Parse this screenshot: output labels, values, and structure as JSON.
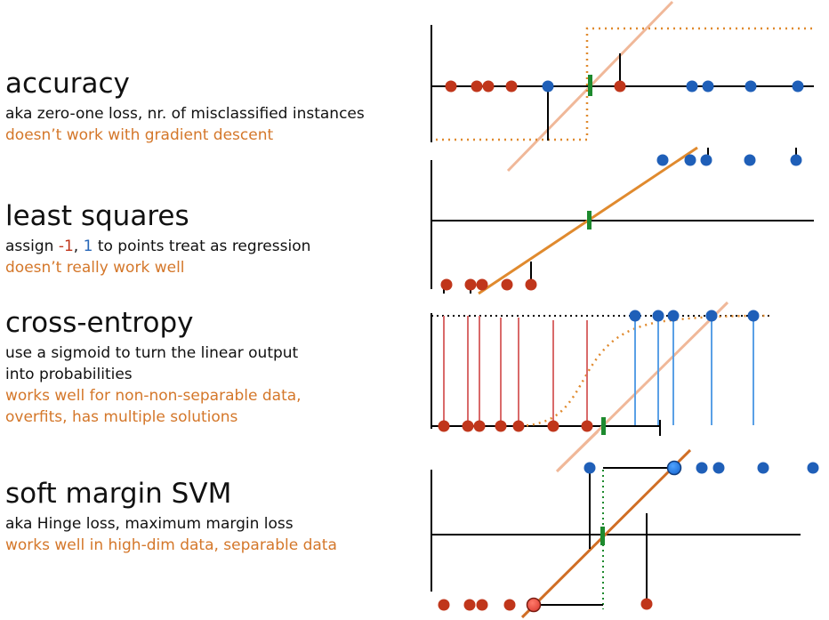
{
  "sections": [
    {
      "title": "accuracy",
      "desc": "aka zero-one loss, nr. of misclassified instances",
      "note": "doesn’t work with gradient descent"
    },
    {
      "title": "least squares",
      "desc_prefix": "assign ",
      "desc_neg": "-1",
      "desc_sep": ", ",
      "desc_pos": "1",
      "desc_suffix": " to points treat as regression",
      "note": "doesn’t really work  well"
    },
    {
      "title": "cross-entropy",
      "desc1": "use a sigmoid to turn the linear output",
      "desc2": "into probabilities",
      "note1": "works well for non-non-separable data,",
      "note2": "overfits, has multiple solutions"
    },
    {
      "title": "soft margin SVM",
      "desc": "aka Hinge loss, maximum margin loss",
      "note": "works well in high-dim data, separable data"
    }
  ],
  "colors": {
    "text": "#111111",
    "note": "#d4772a",
    "negative": "#c0361b",
    "positive": "#1f5fb8",
    "boundary": "#1e8a2e",
    "model_line": "#e08a2e",
    "light_line": "#f0b899",
    "light_red_stem": "#d96a6a",
    "light_blue_stem": "#5aa0e6"
  },
  "icons": [
    "red-point-icon",
    "blue-point-icon",
    "decision-boundary-icon"
  ]
}
